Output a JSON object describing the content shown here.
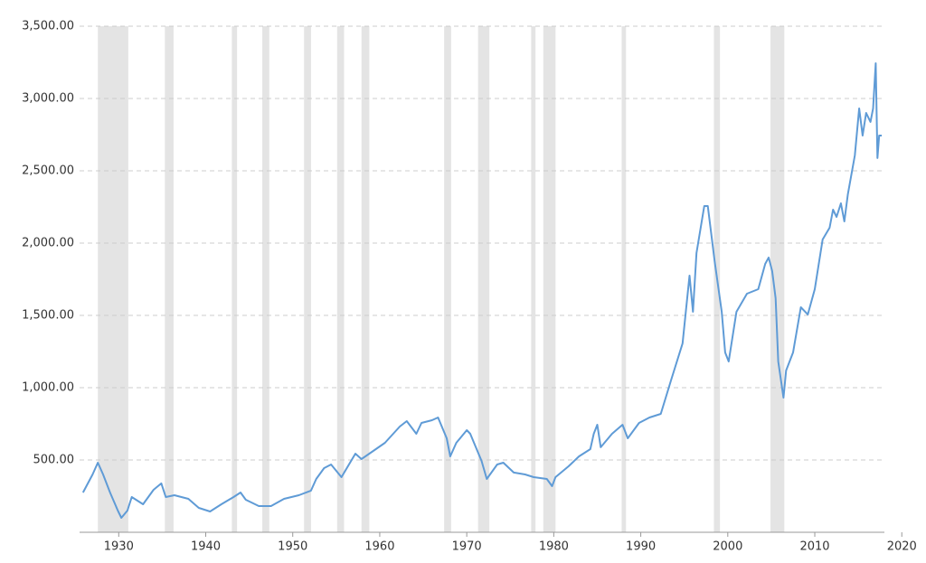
{
  "chart_data": {
    "type": "line",
    "x": [
      1925.9,
      1927.0,
      1927.6,
      1928.2,
      1929.0,
      1929.9,
      1930.3,
      1931.0,
      1931.5,
      1932.8,
      1934.0,
      1934.9,
      1935.4,
      1936.4,
      1938.0,
      1939.2,
      1940.5,
      1941.8,
      1943.2,
      1944.0,
      1944.6,
      1946.1,
      1947.5,
      1949.0,
      1950.7,
      1952.1,
      1952.7,
      1953.6,
      1954.4,
      1955.6,
      1957.2,
      1957.9,
      1959.4,
      1960.6,
      1962.3,
      1963.1,
      1964.2,
      1964.8,
      1966.0,
      1966.7,
      1967.7,
      1968.1,
      1968.8,
      1970.0,
      1970.4,
      1971.7,
      1972.3,
      1973.5,
      1974.2,
      1975.4,
      1976.7,
      1977.7,
      1979.2,
      1979.8,
      1980.2,
      1981.7,
      1982.9,
      1984.2,
      1984.6,
      1985.0,
      1985.4,
      1986.7,
      1987.9,
      1988.5,
      1989.8,
      1991.0,
      1992.3,
      1993.5,
      1994.8,
      1995.6,
      1996.0,
      1996.4,
      1997.3,
      1997.7,
      1998.5,
      1999.3,
      1999.7,
      2000.1,
      2001.0,
      2002.2,
      2003.5,
      2004.3,
      2004.7,
      2005.1,
      2005.5,
      2005.8,
      2006.4,
      2006.7,
      2007.5,
      2008.4,
      2009.2,
      2010.0,
      2010.9,
      2011.7,
      2012.1,
      2012.5,
      2013.0,
      2013.4,
      2013.8,
      2014.6,
      2015.1,
      2015.5,
      2015.9,
      2016.4,
      2016.7,
      2017.0,
      2017.2,
      2017.4,
      2017.7
    ],
    "series": [
      {
        "color": "#5f9bd6",
        "values": [
          275,
          400,
          481,
          400,
          275,
          150,
          100,
          150,
          244,
          194,
          294,
          338,
          244,
          256,
          231,
          169,
          144,
          194,
          244,
          275,
          225,
          181,
          181,
          231,
          256,
          288,
          369,
          444,
          469,
          381,
          544,
          506,
          569,
          619,
          731,
          769,
          681,
          756,
          775,
          794,
          650,
          525,
          619,
          706,
          681,
          494,
          369,
          469,
          481,
          413,
          400,
          381,
          369,
          319,
          381,
          456,
          525,
          575,
          681,
          744,
          588,
          681,
          744,
          650,
          756,
          794,
          819,
          1056,
          1306,
          1775,
          1525,
          1931,
          2256,
          2256,
          1869,
          1525,
          1244,
          1181,
          1525,
          1650,
          1681,
          1856,
          1900,
          1806,
          1619,
          1181,
          931,
          1119,
          1244,
          1556,
          1506,
          1681,
          2025,
          2106,
          2231,
          2181,
          2275,
          2150,
          2338,
          2606,
          2931,
          2744,
          2900,
          2838,
          2931,
          3244,
          2588,
          2744,
          2744
        ]
      }
    ],
    "recessions": [
      [
        1927.6,
        1931.1
      ],
      [
        1935.3,
        1936.3
      ],
      [
        1943.0,
        1943.6
      ],
      [
        1946.5,
        1947.3
      ],
      [
        1951.3,
        1952.1
      ],
      [
        1955.1,
        1955.9
      ],
      [
        1957.9,
        1958.8
      ],
      [
        1967.4,
        1968.2
      ],
      [
        1971.3,
        1972.6
      ],
      [
        1977.4,
        1977.9
      ],
      [
        1978.8,
        1980.2
      ],
      [
        1987.8,
        1988.3
      ],
      [
        1998.4,
        1999.1
      ],
      [
        2004.9,
        2006.5
      ]
    ],
    "recession_color": "#e4e4e4",
    "xlim": [
      1925.5,
      2018.0
    ],
    "xticks": [
      1930,
      1940,
      1950,
      1960,
      1970,
      1980,
      1990,
      2000,
      2010,
      2020
    ],
    "ylim": [
      0,
      3500
    ],
    "yticks": [
      {
        "value": 500,
        "label": "500.00"
      },
      {
        "value": 1000,
        "label": "1,000.00"
      },
      {
        "value": 1500,
        "label": "1,500.00"
      },
      {
        "value": 2000,
        "label": "2,000.00"
      },
      {
        "value": 2500,
        "label": "2,500.00"
      },
      {
        "value": 3000,
        "label": "3,000.00"
      },
      {
        "value": 3500,
        "label": "3,500.00"
      }
    ],
    "grid": true
  }
}
